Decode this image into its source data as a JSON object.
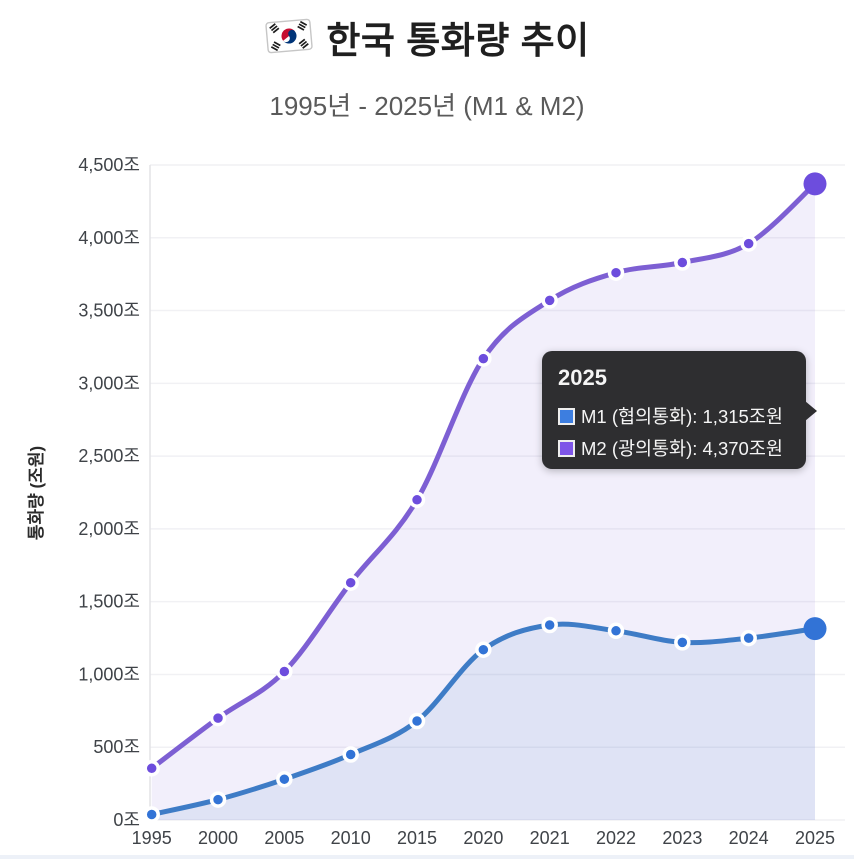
{
  "header": {
    "flag_icon": "south-korea-flag",
    "title": "한국 통화량 추이",
    "subtitle": "1995년 - 2025년 (M1 & M2)"
  },
  "chart_data": {
    "type": "line",
    "style": "smooth-line-with-area-fill",
    "categories": [
      "1995",
      "2000",
      "2005",
      "2010",
      "2015",
      "2020",
      "2021",
      "2022",
      "2023",
      "2024",
      "2025"
    ],
    "series": [
      {
        "name": "M1 (협의통화)",
        "line_color": "#3e7cc6",
        "marker_color": "#3273d6",
        "fill_color": "rgba(62,124,198,0.10)",
        "values": [
          38,
          140,
          280,
          450,
          680,
          1170,
          1340,
          1300,
          1220,
          1250,
          1315
        ]
      },
      {
        "name": "M2 (광의통화)",
        "line_color": "#7d5fd3",
        "marker_color": "#6d4ddd",
        "fill_color": "rgba(125,95,211,0.10)",
        "values": [
          355,
          700,
          1020,
          1630,
          2200,
          3170,
          3570,
          3760,
          3830,
          3960,
          4370
        ]
      }
    ],
    "ylabel": "통화량 (조원)",
    "ylim": [
      0,
      4500
    ],
    "ytick_step": 500,
    "ytick_suffix": "조",
    "grid": true,
    "legend_position": "none",
    "highlighted_category": "2025"
  },
  "tooltip": {
    "title": "2025",
    "rows": [
      {
        "color": "#3d7ee0",
        "text": "M1 (협의통화): 1,315조원"
      },
      {
        "color": "#7e55e8",
        "text": "M2 (광의통화): 4,370조원"
      }
    ]
  }
}
